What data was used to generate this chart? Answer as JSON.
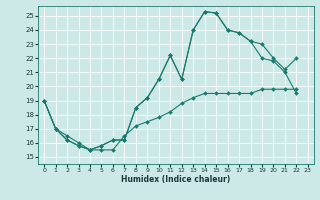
{
  "xlabel": "Humidex (Indice chaleur)",
  "bg_color": "#cce9e7",
  "grid_color": "#ffffff",
  "line_color": "#1a7a6e",
  "xlim": [
    -0.5,
    23.5
  ],
  "ylim": [
    14.5,
    25.7
  ],
  "xticks": [
    0,
    1,
    2,
    3,
    4,
    5,
    6,
    7,
    8,
    9,
    10,
    11,
    12,
    13,
    14,
    15,
    16,
    17,
    18,
    19,
    20,
    21,
    22,
    23
  ],
  "yticks": [
    15,
    16,
    17,
    18,
    19,
    20,
    21,
    22,
    23,
    24,
    25
  ],
  "series1_x": [
    0,
    1,
    2,
    3,
    4,
    5,
    6,
    7,
    8,
    9,
    10,
    11,
    12,
    13,
    14,
    15,
    16,
    17,
    18,
    19,
    20,
    21,
    22
  ],
  "series1_y": [
    19,
    17,
    16.2,
    15.8,
    15.5,
    15.8,
    16.2,
    16.2,
    18.5,
    19.2,
    20.5,
    22.2,
    20.5,
    24.0,
    25.3,
    25.2,
    24.0,
    23.8,
    23.2,
    22.0,
    21.8,
    21.0,
    19.5
  ],
  "series2_x": [
    0,
    1,
    2,
    3,
    4,
    5,
    6,
    7,
    8,
    9,
    10,
    11,
    12,
    13,
    14,
    15,
    16,
    17,
    18,
    19,
    20,
    21,
    22
  ],
  "series2_y": [
    19,
    17,
    16.2,
    15.8,
    15.5,
    15.8,
    16.2,
    16.2,
    18.5,
    19.2,
    20.5,
    22.2,
    20.5,
    24.0,
    25.3,
    25.2,
    24.0,
    23.8,
    23.2,
    23.0,
    22.0,
    21.2,
    22.0
  ],
  "series3_x": [
    0,
    1,
    2,
    3,
    4,
    5,
    6,
    7,
    8,
    9,
    10,
    11,
    12,
    13,
    14,
    15,
    16,
    17,
    18,
    19,
    20,
    21,
    22
  ],
  "series3_y": [
    19,
    17,
    16.5,
    16.0,
    15.5,
    15.5,
    15.5,
    16.5,
    17.2,
    17.5,
    17.8,
    18.2,
    18.8,
    19.2,
    19.5,
    19.5,
    19.5,
    19.5,
    19.5,
    19.8,
    19.8,
    19.8,
    19.8
  ]
}
